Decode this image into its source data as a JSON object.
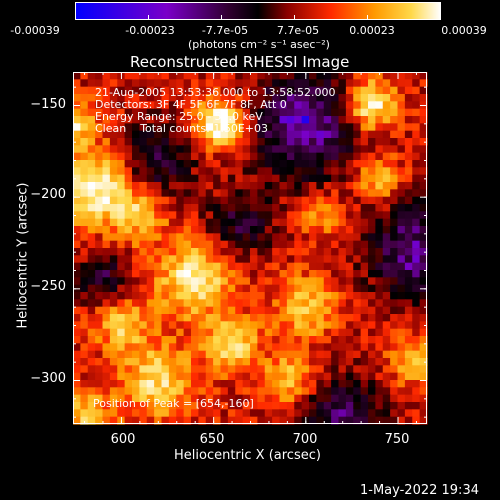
{
  "colorbar": {
    "ticks": [
      "-0.00039",
      "-0.00023",
      "-7.7e-05",
      "7.7e-05",
      "0.00023",
      "0.00039"
    ],
    "unit_label": "(photons cm⁻² s⁻¹ asec⁻²)"
  },
  "chart_data": {
    "type": "heatmap",
    "title": "Reconstructed RHESSI Image",
    "xlabel": "Heliocentric X (arcsec)",
    "ylabel": "Heliocentric Y (arcsec)",
    "xlim": [
      574,
      766
    ],
    "ylim": [
      -324,
      -132
    ],
    "x_ticks": [
      600,
      650,
      700,
      750
    ],
    "y_ticks": [
      -150,
      -200,
      -250,
      -300
    ],
    "x_tick_labels": [
      "600",
      "650",
      "700",
      "750"
    ],
    "y_tick_labels": [
      "−150",
      "−200",
      "−250",
      "−300"
    ],
    "value_range": [
      -0.00039,
      0.00039
    ],
    "colormap": [
      "#0000ff",
      "#7a00c8",
      "#400040",
      "#000000",
      "#8a0000",
      "#ff2a00",
      "#ff9a00",
      "#ffd84a",
      "#ffffff"
    ],
    "peak_position": [
      654,
      -160
    ],
    "annotations": [
      "21-Aug-2005 13:53:36.000 to 13:58:52.000",
      "Detectors: 3F 4F 5F 6F 7F 8F, Att 0",
      "Energy Range: 25.0 - 50.0 keV",
      "Clean    Total counts: 1.50E+03"
    ],
    "peak_label": "Position of Peak = [654,-160]"
  },
  "footer": {
    "timestamp": "1-May-2022 19:34"
  }
}
